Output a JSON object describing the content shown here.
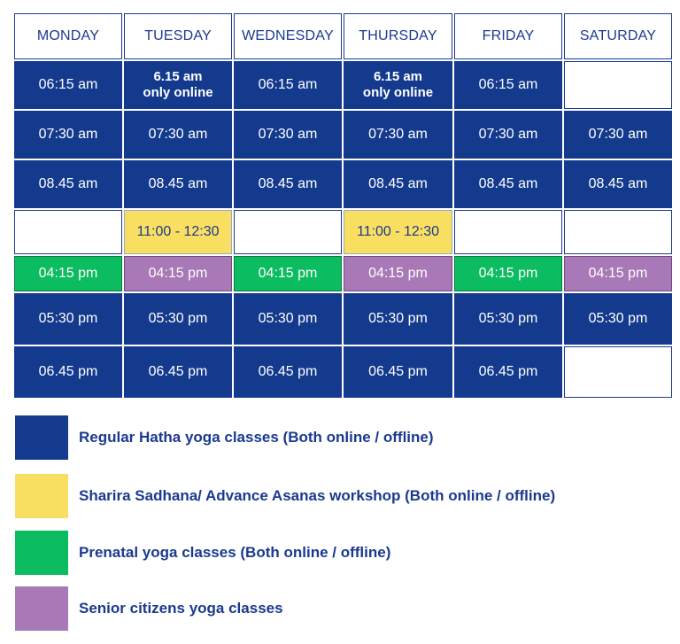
{
  "days": [
    "MONDAY",
    "TUESDAY",
    "WEDNESDAY",
    "THURSDAY",
    "FRIDAY",
    "SATURDAY"
  ],
  "rows": [
    [
      {
        "text": "06:15 am",
        "type": "regular"
      },
      {
        "text": "6.15 am\nonly online",
        "type": "regular-bold"
      },
      {
        "text": "06:15 am",
        "type": "regular"
      },
      {
        "text": "6.15 am\nonly online",
        "type": "regular-bold"
      },
      {
        "text": "06:15 am",
        "type": "regular"
      },
      {
        "text": "",
        "type": "empty"
      }
    ],
    [
      {
        "text": "07:30 am",
        "type": "regular"
      },
      {
        "text": "07:30 am",
        "type": "regular"
      },
      {
        "text": "07:30 am",
        "type": "regular"
      },
      {
        "text": "07:30 am",
        "type": "regular"
      },
      {
        "text": "07:30 am",
        "type": "regular"
      },
      {
        "text": "07:30 am",
        "type": "regular"
      }
    ],
    [
      {
        "text": "08.45 am",
        "type": "regular"
      },
      {
        "text": "08.45 am",
        "type": "regular"
      },
      {
        "text": "08.45 am",
        "type": "regular"
      },
      {
        "text": "08.45 am",
        "type": "regular"
      },
      {
        "text": "08.45 am",
        "type": "regular"
      },
      {
        "text": "08.45 am",
        "type": "regular"
      }
    ],
    [
      {
        "text": "",
        "type": "empty"
      },
      {
        "text": "11:00 - 12:30",
        "type": "yellow"
      },
      {
        "text": "",
        "type": "empty"
      },
      {
        "text": "11:00 - 12:30",
        "type": "yellow"
      },
      {
        "text": "",
        "type": "empty"
      },
      {
        "text": "",
        "type": "empty"
      }
    ],
    [
      {
        "text": "04:15 pm",
        "type": "green"
      },
      {
        "text": "04:15 pm",
        "type": "purple"
      },
      {
        "text": "04:15 pm",
        "type": "green"
      },
      {
        "text": "04:15 pm",
        "type": "purple"
      },
      {
        "text": "04:15 pm",
        "type": "green"
      },
      {
        "text": "04:15 pm",
        "type": "purple"
      }
    ],
    [
      {
        "text": "05:30 pm",
        "type": "regular"
      },
      {
        "text": "05:30 pm",
        "type": "regular"
      },
      {
        "text": "05:30 pm",
        "type": "regular"
      },
      {
        "text": "05:30 pm",
        "type": "regular"
      },
      {
        "text": "05:30 pm",
        "type": "regular"
      },
      {
        "text": "05:30 pm",
        "type": "regular"
      }
    ],
    [
      {
        "text": "06.45 pm",
        "type": "regular"
      },
      {
        "text": "06.45 pm",
        "type": "regular"
      },
      {
        "text": "06.45 pm",
        "type": "regular"
      },
      {
        "text": "06.45 pm",
        "type": "regular"
      },
      {
        "text": "06.45 pm",
        "type": "regular"
      },
      {
        "text": "",
        "type": "empty"
      }
    ]
  ],
  "legend": [
    {
      "color": "#143a8e",
      "label": "Regular Hatha yoga classes (Both online / offline)"
    },
    {
      "color": "#f9df61",
      "label": "Sharira Sadhana/ Advance Asanas workshop (Both online / offline)"
    },
    {
      "color": "#0cbc60",
      "label": "Prenatal yoga classes (Both online / offline)"
    },
    {
      "color": "#a879b6",
      "label": "Senior citizens yoga classes"
    }
  ],
  "colors": {
    "regular": "#143a8e",
    "yellow": "#f9df61",
    "green": "#0cbc60",
    "purple": "#a879b6",
    "text_blue": "#1b3a8f"
  }
}
